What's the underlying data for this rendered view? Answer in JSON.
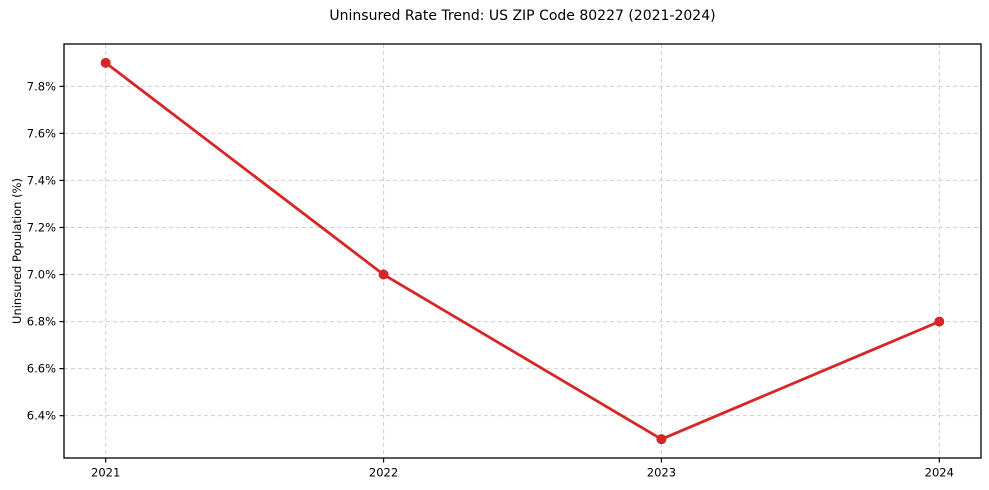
{
  "chart_data": {
    "type": "line",
    "title": "Uninsured Rate Trend: US ZIP Code 80227 (2021-2024)",
    "xlabel": "",
    "ylabel": "Uninsured Population (%)",
    "x": [
      2021,
      2022,
      2023,
      2024
    ],
    "xtick_labels": [
      "2021",
      "2022",
      "2023",
      "2024"
    ],
    "series": [
      {
        "name": "uninsured-rate",
        "values": [
          7.9,
          7.0,
          6.3,
          6.8
        ]
      }
    ],
    "yticks": [
      6.4,
      6.6,
      6.8,
      7.0,
      7.2,
      7.4,
      7.6,
      7.8
    ],
    "ytick_labels": [
      "6.4%",
      "6.6%",
      "6.8%",
      "7.0%",
      "7.2%",
      "7.4%",
      "7.6%",
      "7.8%"
    ],
    "xlim": [
      2020.85,
      2024.15
    ],
    "ylim": [
      6.22,
      7.98
    ],
    "grid": true,
    "legend_position": "none",
    "line_color": "#d62728",
    "marker_color": "#d62728",
    "grid_color": "#cfcfcf",
    "frame_color": "#000000",
    "background_color": "#ffffff"
  }
}
